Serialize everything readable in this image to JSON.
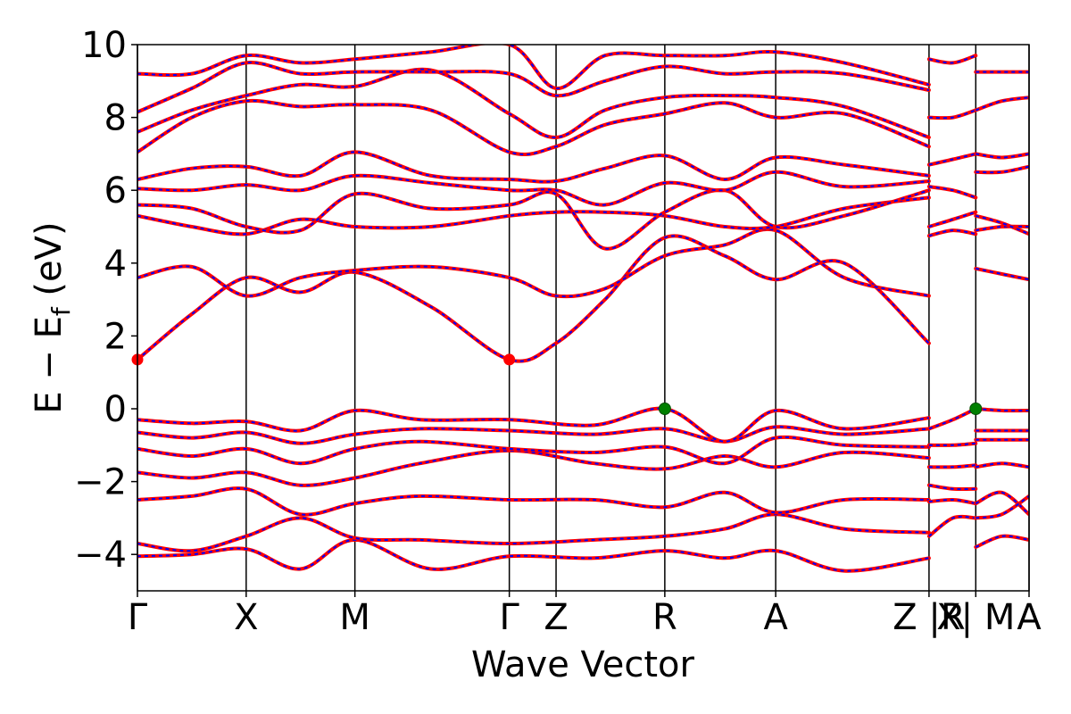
{
  "chart_data": {
    "type": "line",
    "title": "",
    "xlabel": "Wave Vector",
    "ylabel_main": "E − E",
    "ylabel_sub": "f",
    "ylabel_unit": " (eV)",
    "ylim": [
      -5,
      10
    ],
    "xlim": [
      0,
      8.2
    ],
    "grid": false,
    "legend": "none",
    "y_ticks": [
      {
        "value": -4,
        "label": "−4"
      },
      {
        "value": -2,
        "label": "−2"
      },
      {
        "value": 0,
        "label": "0"
      },
      {
        "value": 2,
        "label": "2"
      },
      {
        "value": 4,
        "label": "4"
      },
      {
        "value": 6,
        "label": "6"
      },
      {
        "value": 8,
        "label": "8"
      },
      {
        "value": 10,
        "label": "10"
      }
    ],
    "kpoint_lines": [
      0,
      1.0,
      2.0,
      3.42,
      3.85,
      4.85,
      5.87,
      7.28,
      7.71,
      8.2
    ],
    "kpoint_labels": [
      {
        "x": 0,
        "label": "Γ"
      },
      {
        "x": 1.0,
        "label": "X"
      },
      {
        "x": 2.0,
        "label": "M"
      },
      {
        "x": 3.42,
        "label": "Γ"
      },
      {
        "x": 3.85,
        "label": "Z"
      },
      {
        "x": 4.85,
        "label": "R"
      },
      {
        "x": 5.87,
        "label": "A"
      },
      {
        "x": 7.28,
        "label": "Z |R"
      },
      {
        "x": 7.71,
        "label": "X| M"
      },
      {
        "x": 8.2,
        "label": "A"
      }
    ],
    "segments": [
      [
        0,
        3.42
      ],
      [
        3.42,
        7.28
      ],
      [
        7.28,
        7.71
      ],
      [
        7.71,
        8.2
      ]
    ],
    "series_colors": {
      "primary": "#ff0000",
      "overlay": "#0000ff"
    },
    "cbm_points": [
      {
        "x": 0,
        "y": 1.35
      },
      {
        "x": 3.42,
        "y": 1.35
      }
    ],
    "vbm_points": [
      {
        "x": 4.85,
        "y": 0.0
      },
      {
        "x": 7.71,
        "y": 0.0
      }
    ],
    "marker_colors": {
      "cbm": "#ff0000",
      "vbm": "#008000"
    },
    "bands": [
      [
        [
          0,
          -4.05
        ],
        [
          0.5,
          -4.0
        ],
        [
          1.0,
          -3.85
        ],
        [
          1.5,
          -4.4
        ],
        [
          2.0,
          -3.6
        ],
        [
          2.7,
          -4.4
        ],
        [
          3.42,
          -4.05
        ],
        [
          4.2,
          -4.1
        ],
        [
          4.85,
          -3.9
        ],
        [
          5.4,
          -4.1
        ],
        [
          5.87,
          -3.9
        ],
        [
          6.5,
          -4.45
        ],
        [
          7.28,
          -4.1
        ]
      ],
      [
        [
          0,
          -3.7
        ],
        [
          0.5,
          -3.9
        ],
        [
          1.0,
          -3.5
        ],
        [
          1.5,
          -3.0
        ],
        [
          2.0,
          -3.55
        ],
        [
          2.6,
          -3.6
        ],
        [
          3.42,
          -3.7
        ],
        [
          4.2,
          -3.6
        ],
        [
          4.85,
          -3.5
        ],
        [
          5.4,
          -3.3
        ],
        [
          5.87,
          -2.9
        ],
        [
          6.5,
          -3.3
        ],
        [
          7.28,
          -3.4
        ]
      ],
      [
        [
          0,
          -2.5
        ],
        [
          0.5,
          -2.4
        ],
        [
          1.0,
          -2.2
        ],
        [
          1.5,
          -2.9
        ],
        [
          2.0,
          -2.6
        ],
        [
          2.6,
          -2.4
        ],
        [
          3.42,
          -2.5
        ],
        [
          4.2,
          -2.5
        ],
        [
          4.85,
          -2.7
        ],
        [
          5.4,
          -2.3
        ],
        [
          5.87,
          -2.85
        ],
        [
          6.5,
          -2.5
        ],
        [
          7.28,
          -2.5
        ]
      ],
      [
        [
          0,
          -1.75
        ],
        [
          0.5,
          -1.9
        ],
        [
          1.0,
          -1.75
        ],
        [
          1.5,
          -2.1
        ],
        [
          2.0,
          -1.9
        ],
        [
          2.6,
          -1.5
        ],
        [
          3.42,
          -1.15
        ],
        [
          4.2,
          -1.5
        ],
        [
          4.85,
          -1.65
        ],
        [
          5.4,
          -1.3
        ],
        [
          5.87,
          -1.6
        ],
        [
          6.5,
          -1.2
        ],
        [
          7.28,
          -1.35
        ]
      ],
      [
        [
          0,
          -1.1
        ],
        [
          0.5,
          -1.3
        ],
        [
          1.0,
          -1.1
        ],
        [
          1.5,
          -1.5
        ],
        [
          2.0,
          -1.1
        ],
        [
          2.6,
          -0.9
        ],
        [
          3.42,
          -1.1
        ],
        [
          4.2,
          -1.2
        ],
        [
          4.85,
          -1.05
        ],
        [
          5.4,
          -1.5
        ],
        [
          5.87,
          -0.8
        ],
        [
          6.5,
          -1.0
        ],
        [
          7.28,
          -1.05
        ]
      ],
      [
        [
          0,
          -0.65
        ],
        [
          0.5,
          -0.8
        ],
        [
          1.0,
          -0.65
        ],
        [
          1.5,
          -0.95
        ],
        [
          2.0,
          -0.7
        ],
        [
          2.6,
          -0.55
        ],
        [
          3.42,
          -0.6
        ],
        [
          4.2,
          -0.7
        ],
        [
          4.85,
          -0.55
        ],
        [
          5.4,
          -0.9
        ],
        [
          5.87,
          -0.5
        ],
        [
          6.5,
          -0.7
        ],
        [
          7.28,
          -0.55
        ]
      ],
      [
        [
          0,
          -0.3
        ],
        [
          0.5,
          -0.4
        ],
        [
          1.0,
          -0.35
        ],
        [
          1.5,
          -0.6
        ],
        [
          2.0,
          -0.05
        ],
        [
          2.6,
          -0.3
        ],
        [
          3.42,
          -0.3
        ],
        [
          4.2,
          -0.45
        ],
        [
          4.85,
          0.0
        ],
        [
          5.4,
          -0.9
        ],
        [
          5.87,
          -0.05
        ],
        [
          6.5,
          -0.55
        ],
        [
          7.28,
          -0.25
        ]
      ],
      [
        [
          0,
          1.35
        ],
        [
          0.5,
          2.6
        ],
        [
          1.0,
          3.6
        ],
        [
          1.5,
          3.2
        ],
        [
          2.0,
          3.75
        ],
        [
          2.7,
          2.8
        ],
        [
          3.42,
          1.35
        ],
        [
          3.85,
          1.8
        ],
        [
          4.3,
          3.0
        ],
        [
          4.85,
          4.7
        ],
        [
          5.4,
          4.2
        ],
        [
          5.87,
          3.55
        ],
        [
          6.5,
          4.0
        ],
        [
          7.28,
          1.8
        ]
      ],
      [
        [
          0,
          3.6
        ],
        [
          0.5,
          3.9
        ],
        [
          1.0,
          3.1
        ],
        [
          1.5,
          3.6
        ],
        [
          2.0,
          3.8
        ],
        [
          2.7,
          3.9
        ],
        [
          3.42,
          3.6
        ],
        [
          3.85,
          3.1
        ],
        [
          4.3,
          3.3
        ],
        [
          4.85,
          4.2
        ],
        [
          5.4,
          4.5
        ],
        [
          5.87,
          4.9
        ],
        [
          6.5,
          3.6
        ],
        [
          7.28,
          3.1
        ]
      ],
      [
        [
          0,
          5.3
        ],
        [
          0.5,
          5.0
        ],
        [
          1.0,
          4.8
        ],
        [
          1.5,
          5.2
        ],
        [
          2.0,
          5.0
        ],
        [
          2.7,
          5.0
        ],
        [
          3.42,
          5.3
        ],
        [
          3.85,
          5.4
        ],
        [
          4.3,
          5.4
        ],
        [
          4.85,
          5.3
        ],
        [
          5.4,
          5.0
        ],
        [
          5.87,
          5.0
        ],
        [
          6.5,
          5.5
        ],
        [
          7.28,
          5.8
        ]
      ],
      [
        [
          0,
          5.6
        ],
        [
          0.5,
          5.5
        ],
        [
          1.0,
          5.0
        ],
        [
          1.5,
          4.9
        ],
        [
          2.0,
          5.9
        ],
        [
          2.7,
          5.5
        ],
        [
          3.42,
          5.6
        ],
        [
          3.85,
          5.9
        ],
        [
          4.3,
          4.4
        ],
        [
          4.85,
          5.4
        ],
        [
          5.4,
          6.0
        ],
        [
          5.87,
          5.0
        ],
        [
          6.5,
          5.3
        ],
        [
          7.28,
          6.0
        ]
      ],
      [
        [
          0,
          6.05
        ],
        [
          0.5,
          6.0
        ],
        [
          1.0,
          6.15
        ],
        [
          1.5,
          6.0
        ],
        [
          2.0,
          6.4
        ],
        [
          2.7,
          6.2
        ],
        [
          3.42,
          6.0
        ],
        [
          3.85,
          6.0
        ],
        [
          4.3,
          5.6
        ],
        [
          4.85,
          6.2
        ],
        [
          5.4,
          6.0
        ],
        [
          5.87,
          6.5
        ],
        [
          6.5,
          6.1
        ],
        [
          7.28,
          6.25
        ]
      ],
      [
        [
          0,
          6.3
        ],
        [
          0.5,
          6.6
        ],
        [
          1.0,
          6.65
        ],
        [
          1.5,
          6.4
        ],
        [
          2.0,
          7.05
        ],
        [
          2.7,
          6.4
        ],
        [
          3.42,
          6.3
        ],
        [
          3.85,
          6.25
        ],
        [
          4.3,
          6.6
        ],
        [
          4.85,
          6.95
        ],
        [
          5.4,
          6.3
        ],
        [
          5.87,
          6.9
        ],
        [
          6.5,
          6.7
        ],
        [
          7.28,
          6.4
        ]
      ],
      [
        [
          0,
          7.05
        ],
        [
          0.5,
          8.0
        ],
        [
          1.0,
          8.45
        ],
        [
          1.5,
          8.3
        ],
        [
          2.0,
          8.35
        ],
        [
          2.7,
          8.2
        ],
        [
          3.42,
          7.05
        ],
        [
          3.85,
          7.2
        ],
        [
          4.3,
          7.8
        ],
        [
          4.85,
          8.1
        ],
        [
          5.4,
          8.4
        ],
        [
          5.87,
          8.0
        ],
        [
          6.5,
          8.1
        ],
        [
          7.28,
          7.2
        ]
      ],
      [
        [
          0,
          7.6
        ],
        [
          0.5,
          8.2
        ],
        [
          1.0,
          8.6
        ],
        [
          1.5,
          8.9
        ],
        [
          2.0,
          8.85
        ],
        [
          2.7,
          9.3
        ],
        [
          3.42,
          8.1
        ],
        [
          3.85,
          7.45
        ],
        [
          4.3,
          8.2
        ],
        [
          4.85,
          8.55
        ],
        [
          5.4,
          8.6
        ],
        [
          5.87,
          8.55
        ],
        [
          6.5,
          8.3
        ],
        [
          7.28,
          7.45
        ]
      ],
      [
        [
          0,
          8.15
        ],
        [
          0.5,
          8.8
        ],
        [
          1.0,
          9.5
        ],
        [
          1.5,
          9.2
        ],
        [
          2.0,
          9.25
        ],
        [
          2.7,
          9.25
        ],
        [
          3.42,
          9.2
        ],
        [
          3.85,
          8.6
        ],
        [
          4.3,
          9.0
        ],
        [
          4.85,
          9.4
        ],
        [
          5.4,
          9.2
        ],
        [
          5.87,
          9.25
        ],
        [
          6.5,
          9.2
        ],
        [
          7.28,
          8.75
        ]
      ],
      [
        [
          0,
          9.2
        ],
        [
          0.5,
          9.2
        ],
        [
          1.0,
          9.7
        ],
        [
          1.5,
          9.5
        ],
        [
          2.0,
          9.6
        ],
        [
          2.7,
          9.8
        ],
        [
          3.42,
          10.0
        ],
        [
          3.85,
          8.8
        ],
        [
          4.3,
          9.7
        ],
        [
          4.85,
          9.7
        ],
        [
          5.4,
          9.7
        ],
        [
          5.87,
          9.8
        ],
        [
          6.5,
          9.5
        ],
        [
          7.28,
          8.9
        ]
      ],
      [
        [
          7.28,
          -2.55
        ],
        [
          7.5,
          -2.5
        ],
        [
          7.71,
          -2.6
        ]
      ],
      [
        [
          7.28,
          -2.1
        ],
        [
          7.5,
          -2.2
        ],
        [
          7.71,
          -2.2
        ]
      ],
      [
        [
          7.28,
          -1.6
        ],
        [
          7.5,
          -1.6
        ],
        [
          7.71,
          -1.55
        ]
      ],
      [
        [
          7.28,
          -1.0
        ],
        [
          7.5,
          -1.0
        ],
        [
          7.71,
          -0.95
        ]
      ],
      [
        [
          7.28,
          -0.55
        ],
        [
          7.5,
          -0.3
        ],
        [
          7.71,
          0.0
        ]
      ],
      [
        [
          7.28,
          -3.5
        ],
        [
          7.5,
          -3.0
        ],
        [
          7.71,
          -3.0
        ]
      ],
      [
        [
          7.28,
          4.75
        ],
        [
          7.5,
          4.9
        ],
        [
          7.71,
          4.8
        ]
      ],
      [
        [
          7.28,
          5.0
        ],
        [
          7.5,
          5.2
        ],
        [
          7.71,
          5.4
        ]
      ],
      [
        [
          7.28,
          6.1
        ],
        [
          7.5,
          6.0
        ],
        [
          7.71,
          5.8
        ]
      ],
      [
        [
          7.28,
          6.7
        ],
        [
          7.5,
          6.85
        ],
        [
          7.71,
          7.0
        ]
      ],
      [
        [
          7.28,
          8.0
        ],
        [
          7.5,
          8.0
        ],
        [
          7.71,
          8.2
        ]
      ],
      [
        [
          7.28,
          9.6
        ],
        [
          7.5,
          9.5
        ],
        [
          7.71,
          9.7
        ]
      ],
      [
        [
          7.71,
          0.0
        ],
        [
          7.95,
          -0.05
        ],
        [
          8.2,
          -0.05
        ]
      ],
      [
        [
          7.71,
          -0.6
        ],
        [
          7.95,
          -0.6
        ],
        [
          8.2,
          -0.6
        ]
      ],
      [
        [
          7.71,
          -0.85
        ],
        [
          7.95,
          -0.85
        ],
        [
          8.2,
          -0.85
        ]
      ],
      [
        [
          7.71,
          -1.6
        ],
        [
          7.95,
          -1.5
        ],
        [
          8.2,
          -1.6
        ]
      ],
      [
        [
          7.71,
          -2.6
        ],
        [
          7.95,
          -2.3
        ],
        [
          8.2,
          -2.9
        ]
      ],
      [
        [
          7.71,
          -3.0
        ],
        [
          7.95,
          -2.9
        ],
        [
          8.2,
          -2.4
        ]
      ],
      [
        [
          7.71,
          -3.8
        ],
        [
          7.95,
          -3.5
        ],
        [
          8.2,
          -3.6
        ]
      ],
      [
        [
          7.71,
          3.85
        ],
        [
          7.95,
          3.7
        ],
        [
          8.2,
          3.55
        ]
      ],
      [
        [
          7.71,
          4.9
        ],
        [
          7.95,
          5.0
        ],
        [
          8.2,
          5.0
        ]
      ],
      [
        [
          7.71,
          5.3
        ],
        [
          7.95,
          5.1
        ],
        [
          8.2,
          4.8
        ]
      ],
      [
        [
          7.71,
          6.5
        ],
        [
          7.95,
          6.5
        ],
        [
          8.2,
          6.65
        ]
      ],
      [
        [
          7.71,
          7.0
        ],
        [
          7.95,
          6.9
        ],
        [
          8.2,
          7.0
        ]
      ],
      [
        [
          7.71,
          8.2
        ],
        [
          7.95,
          8.45
        ],
        [
          8.2,
          8.55
        ]
      ],
      [
        [
          7.71,
          9.25
        ],
        [
          7.95,
          9.25
        ],
        [
          8.2,
          9.25
        ]
      ]
    ]
  }
}
